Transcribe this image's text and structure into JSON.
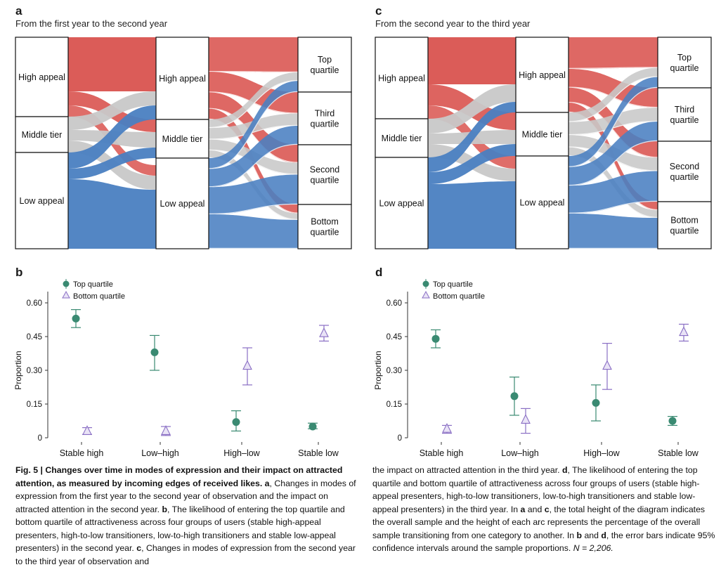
{
  "panels": {
    "a": {
      "letter": "a",
      "title": "From the first year to the second year"
    },
    "c": {
      "letter": "c",
      "title": "From the second year to the third year"
    },
    "b": {
      "letter": "b"
    },
    "d": {
      "letter": "d"
    }
  },
  "sankey_labels": {
    "high": "High appeal",
    "middle": "Middle tier",
    "low": "Low appeal",
    "top_q": [
      "Top",
      "quartile"
    ],
    "third_q": [
      "Third",
      "quartile"
    ],
    "second_q": [
      "Second",
      "quartile"
    ],
    "bottom_q": [
      "Bottom",
      "quartile"
    ]
  },
  "colors": {
    "high": "#d9534f",
    "middle": "#c8c8c8",
    "low": "#4a7fc1",
    "top": "#3a8a72",
    "bottom": "#8a6fc4"
  },
  "chart_data": [
    {
      "type": "scatter",
      "panel": "b",
      "categories": [
        "Stable high",
        "Low–high",
        "High–low",
        "Stable low"
      ],
      "ylabel": "Proportion",
      "yticks": [
        "0",
        "0.15",
        "0.30",
        "0.45",
        "0.60"
      ],
      "ylim": [
        0,
        0.68
      ],
      "legend": [
        "Top quartile",
        "Bottom quartile"
      ],
      "series": [
        {
          "name": "Top quartile",
          "values": [
            0.53,
            0.38,
            0.07,
            0.05
          ],
          "ci_low": [
            0.49,
            0.3,
            0.03,
            0.04
          ],
          "ci_high": [
            0.57,
            0.455,
            0.12,
            0.065
          ]
        },
        {
          "name": "Bottom quartile",
          "values": [
            0.03,
            0.03,
            0.32,
            0.465
          ],
          "ci_low": [
            0.015,
            0.01,
            0.235,
            0.43
          ],
          "ci_high": [
            0.045,
            0.05,
            0.4,
            0.5
          ]
        }
      ]
    },
    {
      "type": "scatter",
      "panel": "d",
      "categories": [
        "Stable high",
        "Low–high",
        "High–low",
        "Stable low"
      ],
      "ylabel": "Proportion",
      "yticks": [
        "0",
        "0.15",
        "0.30",
        "0.45",
        "0.60"
      ],
      "ylim": [
        0,
        0.68
      ],
      "legend": [
        "Top quartile",
        "Bottom quartile"
      ],
      "series": [
        {
          "name": "Top quartile",
          "values": [
            0.44,
            0.185,
            0.155,
            0.075
          ],
          "ci_low": [
            0.4,
            0.1,
            0.075,
            0.055
          ],
          "ci_high": [
            0.48,
            0.27,
            0.235,
            0.095
          ]
        },
        {
          "name": "Bottom quartile",
          "values": [
            0.04,
            0.08,
            0.32,
            0.47
          ],
          "ci_low": [
            0.02,
            0.02,
            0.215,
            0.43
          ],
          "ci_high": [
            0.055,
            0.13,
            0.42,
            0.505
          ]
        }
      ]
    }
  ],
  "caption": {
    "fig_label": "Fig. 5 | Changes over time in modes of expression and their impact on attracted attention, as measured by incoming edges of received likes.",
    "left_rest_1": " a",
    "left_body": ", Changes in modes of expression from the first year to the second year of observation and the impact on attracted attention in the second year. ",
    "b_label": "b",
    "b_body": ", The likelihood of entering the top quartile and bottom quartile of attractiveness across four groups of users (stable high-appeal presenters, high-to-low transitioners, low-to-high transitioners and stable low-appeal presenters) in the second year. ",
    "c_label": "c",
    "c_body": ", Changes in modes of expression from the second year to the third year of observation and",
    "right_1": "the impact on attracted attention in the third year. ",
    "d_label": "d",
    "d_body": ", The likelihood of entering the top quartile and bottom quartile of attractiveness across four groups of users (stable high-appeal presenters, high-to-low transitioners, low-to-high transitioners and stable low-appeal presenters) in the third year. In ",
    "ac_label": "a",
    "and": " and ",
    "c2_label": "c",
    "ac_body": ", the total height of the diagram indicates the overall sample and the height of each arc represents the percentage of the overall sample transitioning from one category to another. In ",
    "bd_b": "b",
    "bd_and": " and ",
    "bd_d": "d",
    "bd_body": ", the error bars indicate 95% confidence intervals around the sample proportions. ",
    "n_text": "N = 2,206."
  }
}
